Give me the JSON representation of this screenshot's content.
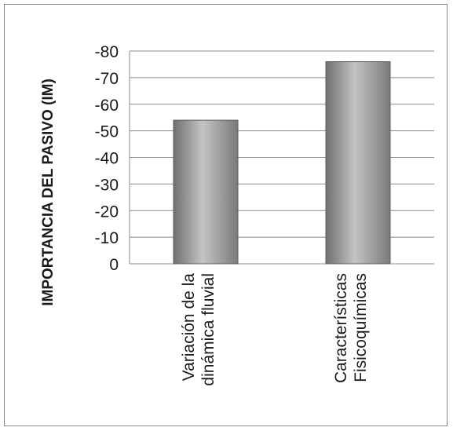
{
  "chart_data": {
    "type": "bar",
    "ylabel": "IMPORTANCIA DEL PASIVO (IM)",
    "categories": [
      [
        "Variación de la",
        "dinámica fluvial"
      ],
      [
        "Características",
        "Fisicoquímicas"
      ]
    ],
    "values": [
      -54,
      -76
    ],
    "yticks": [
      "-80",
      "-70",
      "-60",
      "-50",
      "-40",
      "-30",
      "-20",
      "-10",
      "0"
    ],
    "ylim": [
      0,
      -80
    ],
    "y_axis_direction": "decreasing-up",
    "grid": true,
    "legend": "none",
    "colors": {
      "bar_dark": "#6f6f6f",
      "bar_light": "#c4c4c4",
      "grid": "#8c8c8c"
    }
  }
}
